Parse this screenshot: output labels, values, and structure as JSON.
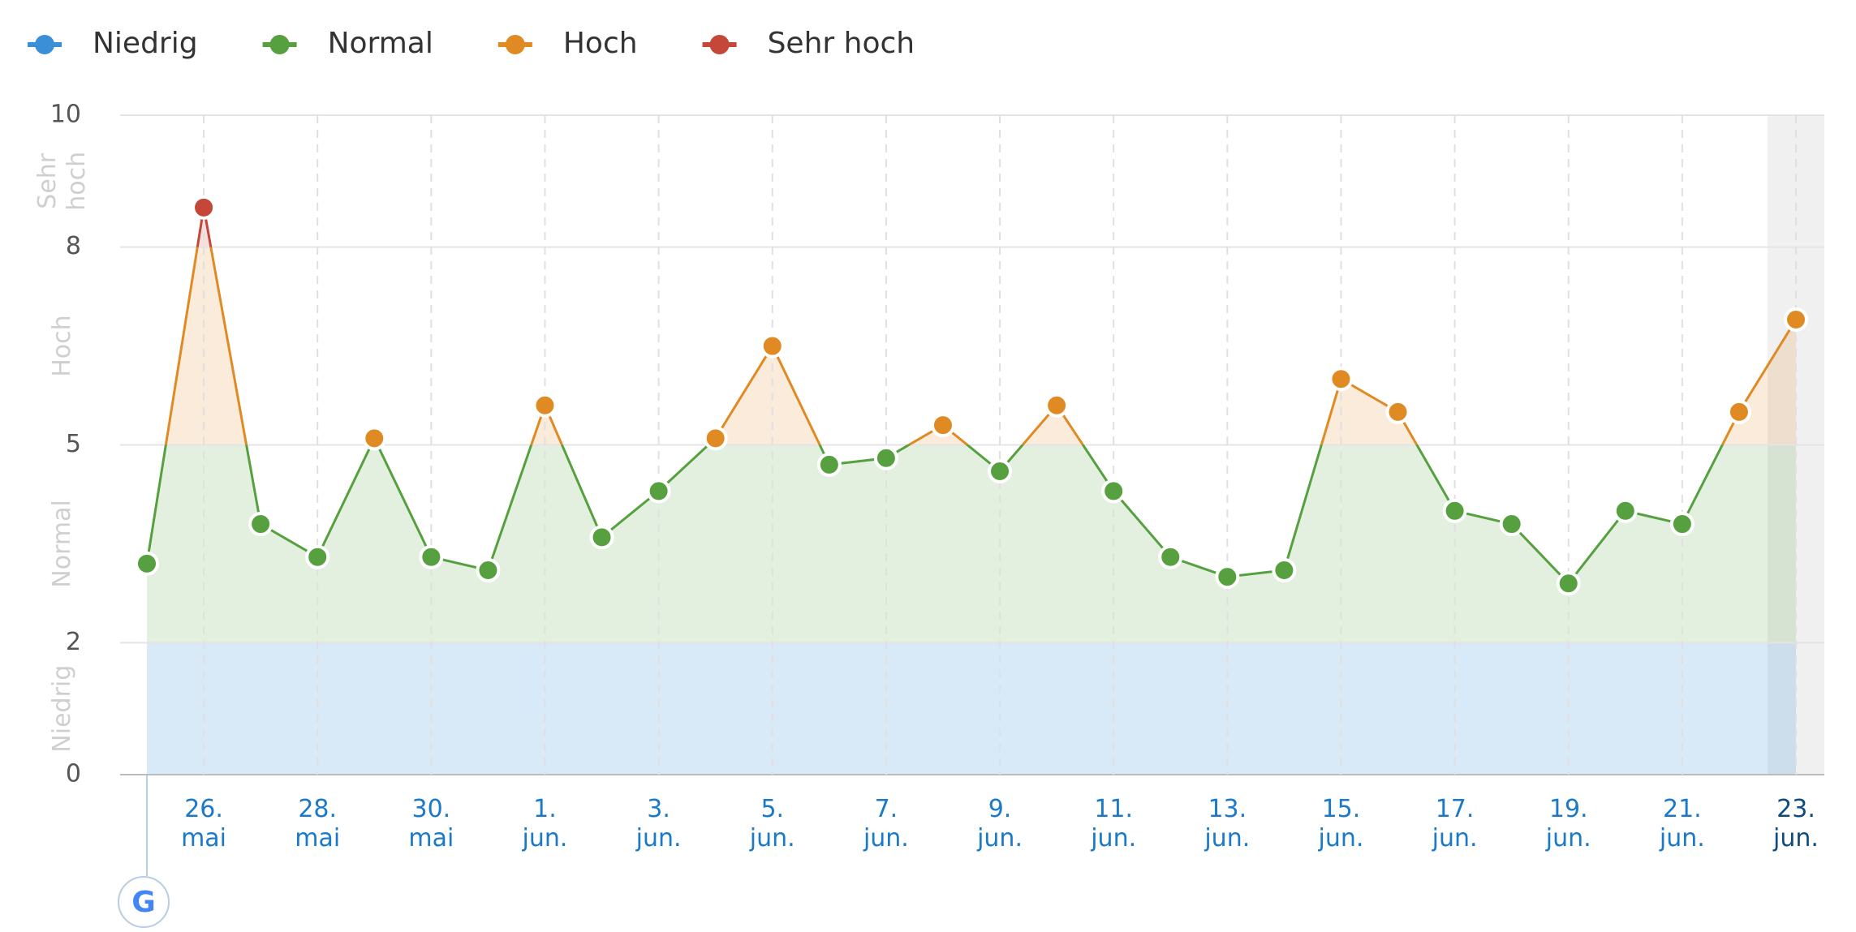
{
  "chart_data": {
    "type": "line",
    "bands": [
      {
        "name": "Niedrig",
        "from": 0,
        "to": 2,
        "color": "#3b8fd6"
      },
      {
        "name": "Normal",
        "from": 2,
        "to": 5,
        "color": "#56a03f"
      },
      {
        "name": "Hoch",
        "from": 5,
        "to": 8,
        "color": "#e08a24"
      },
      {
        "name": "Sehr hoch",
        "from": 8,
        "to": 10,
        "color": "#c4473a"
      }
    ],
    "categories": [
      null,
      "26. mai",
      null,
      "28. mai",
      null,
      "30. mai",
      null,
      "1. jun.",
      null,
      "3. jun.",
      null,
      "5. jun.",
      null,
      "7. jun.",
      null,
      "9. jun.",
      null,
      "11. jun.",
      null,
      "13. jun.",
      null,
      "15. jun.",
      null,
      "17. jun.",
      null,
      "19. jun.",
      null,
      "21. jun.",
      null,
      "23. jun."
    ],
    "values": [
      3.2,
      8.6,
      3.8,
      3.3,
      5.1,
      3.3,
      3.1,
      5.6,
      3.6,
      4.3,
      5.1,
      6.5,
      4.7,
      4.8,
      5.3,
      4.6,
      5.6,
      4.3,
      3.3,
      3.0,
      3.1,
      6.0,
      5.5,
      4.0,
      3.8,
      2.9,
      4.0,
      3.8,
      5.5,
      6.9
    ],
    "ylim": [
      0,
      10
    ],
    "yticks": [
      0,
      2,
      5,
      8,
      10
    ],
    "grid": true
  }
}
